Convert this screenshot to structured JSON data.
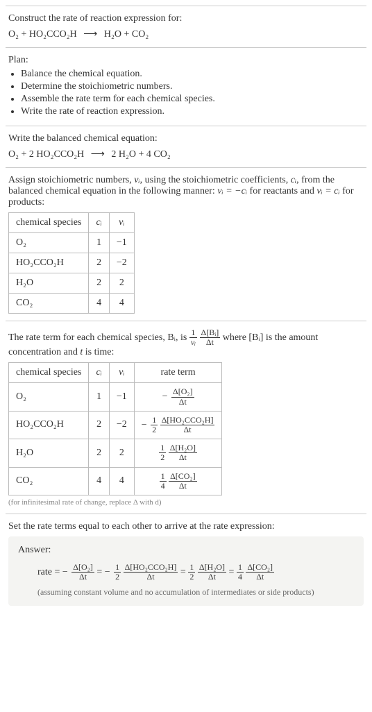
{
  "intro": {
    "heading": "Construct the rate of reaction expression for:",
    "reactants": [
      "O₂",
      "HO₂CCO₂H"
    ],
    "products": [
      "H₂O",
      "CO₂"
    ],
    "arrow": "⟶"
  },
  "plan": {
    "heading": "Plan:",
    "items": [
      "Balance the chemical equation.",
      "Determine the stoichiometric numbers.",
      "Assemble the rate term for each chemical species.",
      "Write the rate of reaction expression."
    ]
  },
  "balanced": {
    "heading": "Write the balanced chemical equation:",
    "reactants": [
      {
        "coef": "",
        "sp": "O₂"
      },
      {
        "coef": "2",
        "sp": "HO₂CCO₂H"
      }
    ],
    "products": [
      {
        "coef": "2",
        "sp": "H₂O"
      },
      {
        "coef": "4",
        "sp": "CO₂"
      }
    ],
    "arrow": "⟶"
  },
  "stoich": {
    "text_before": "Assign stoichiometric numbers, ",
    "nu_i": "νᵢ",
    "text_mid1": ", using the stoichiometric coefficients, ",
    "c_i": "cᵢ",
    "text_mid2": ", from the balanced chemical equation in the following manner: ",
    "rel_reactants": "νᵢ = −cᵢ",
    "text_mid3": " for reactants and ",
    "rel_products": "νᵢ = cᵢ",
    "text_mid4": " for products:",
    "table": {
      "headers": [
        "chemical species",
        "cᵢ",
        "νᵢ"
      ],
      "rows": [
        [
          "O₂",
          "1",
          "−1"
        ],
        [
          "HO₂CCO₂H",
          "2",
          "−2"
        ],
        [
          "H₂O",
          "2",
          "2"
        ],
        [
          "CO₂",
          "4",
          "4"
        ]
      ]
    }
  },
  "rateterm": {
    "text_before": "The rate term for each chemical species, ",
    "B_i": "Bᵢ",
    "text_mid1": ", is ",
    "frac1_num": "1",
    "frac1_den": "νᵢ",
    "frac2_num": "Δ[Bᵢ]",
    "frac2_den": "Δt",
    "text_mid2": " where [Bᵢ] is the amount concentration and ",
    "t_var": "t",
    "text_mid3": " is time:",
    "table": {
      "headers": [
        "chemical species",
        "cᵢ",
        "νᵢ",
        "rate term"
      ],
      "rows": [
        {
          "sp": "O₂",
          "c": "1",
          "nu": "−1",
          "sign": "−",
          "coef_num": "",
          "coef_den": "",
          "d_num": "Δ[O₂]",
          "d_den": "Δt"
        },
        {
          "sp": "HO₂CCO₂H",
          "c": "2",
          "nu": "−2",
          "sign": "−",
          "coef_num": "1",
          "coef_den": "2",
          "d_num": "Δ[HO₂CCO₂H]",
          "d_den": "Δt"
        },
        {
          "sp": "H₂O",
          "c": "2",
          "nu": "2",
          "sign": "",
          "coef_num": "1",
          "coef_den": "2",
          "d_num": "Δ[H₂O]",
          "d_den": "Δt"
        },
        {
          "sp": "CO₂",
          "c": "4",
          "nu": "4",
          "sign": "",
          "coef_num": "1",
          "coef_den": "4",
          "d_num": "Δ[CO₂]",
          "d_den": "Δt"
        }
      ]
    },
    "footnote": "(for infinitesimal rate of change, replace Δ with d)"
  },
  "final": {
    "heading": "Set the rate terms equal to each other to arrive at the rate expression:",
    "answer_label": "Answer:",
    "rate_label": "rate = ",
    "terms": [
      {
        "sign": "−",
        "coef_num": "",
        "coef_den": "",
        "d_num": "Δ[O₂]",
        "d_den": "Δt"
      },
      {
        "sign": "−",
        "coef_num": "1",
        "coef_den": "2",
        "d_num": "Δ[HO₂CCO₂H]",
        "d_den": "Δt"
      },
      {
        "sign": "",
        "coef_num": "1",
        "coef_den": "2",
        "d_num": "Δ[H₂O]",
        "d_den": "Δt"
      },
      {
        "sign": "",
        "coef_num": "1",
        "coef_den": "4",
        "d_num": "Δ[CO₂]",
        "d_den": "Δt"
      }
    ],
    "eq_sep": " = ",
    "note": "(assuming constant volume and no accumulation of intermediates or side products)"
  }
}
